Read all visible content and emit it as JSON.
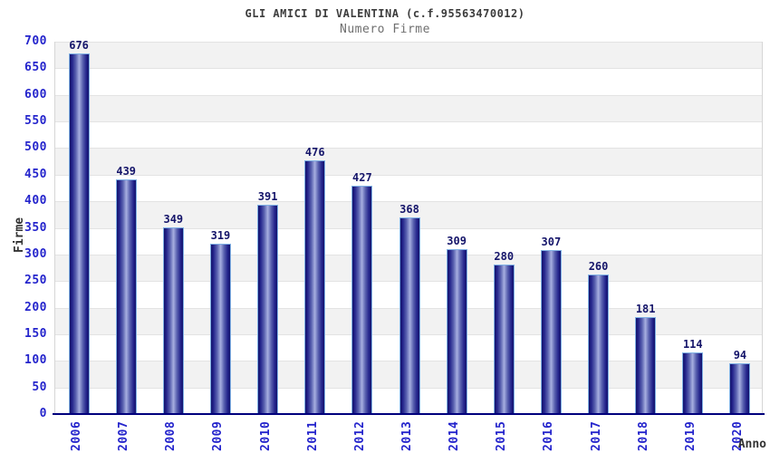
{
  "header": {
    "title": "GLI AMICI DI VALENTINA (c.f.95563470012)",
    "subtitle": "Numero Firme"
  },
  "chart_data": {
    "type": "bar",
    "title": "GLI AMICI DI VALENTINA (c.f.95563470012)",
    "subtitle": "Numero Firme",
    "xlabel": "Anno",
    "ylabel": "Firme",
    "categories": [
      "2006",
      "2007",
      "2008",
      "2009",
      "2010",
      "2011",
      "2012",
      "2013",
      "2014",
      "2015",
      "2016",
      "2017",
      "2018",
      "2019",
      "2020"
    ],
    "values": [
      676,
      439,
      349,
      319,
      391,
      476,
      427,
      368,
      309,
      280,
      307,
      260,
      181,
      114,
      94
    ],
    "ylim": [
      0,
      700
    ],
    "ytick_step": 50,
    "grid": "horizontal-alternating-bands",
    "legend": "none",
    "bar_value_labels": true,
    "colors": {
      "bar_edge": "#14146b",
      "bar_center": "#a7afe0",
      "bar_outline": "#7fb0e4",
      "tick_label": "#2424cc",
      "value_label": "#15156a",
      "axis_line": "#00007c",
      "band_gray": "#f2f2f2",
      "band_white": "#ffffff",
      "gridline": "#e3e3e3",
      "title": "#3c3c3c",
      "subtitle": "#6f6f6f"
    }
  }
}
